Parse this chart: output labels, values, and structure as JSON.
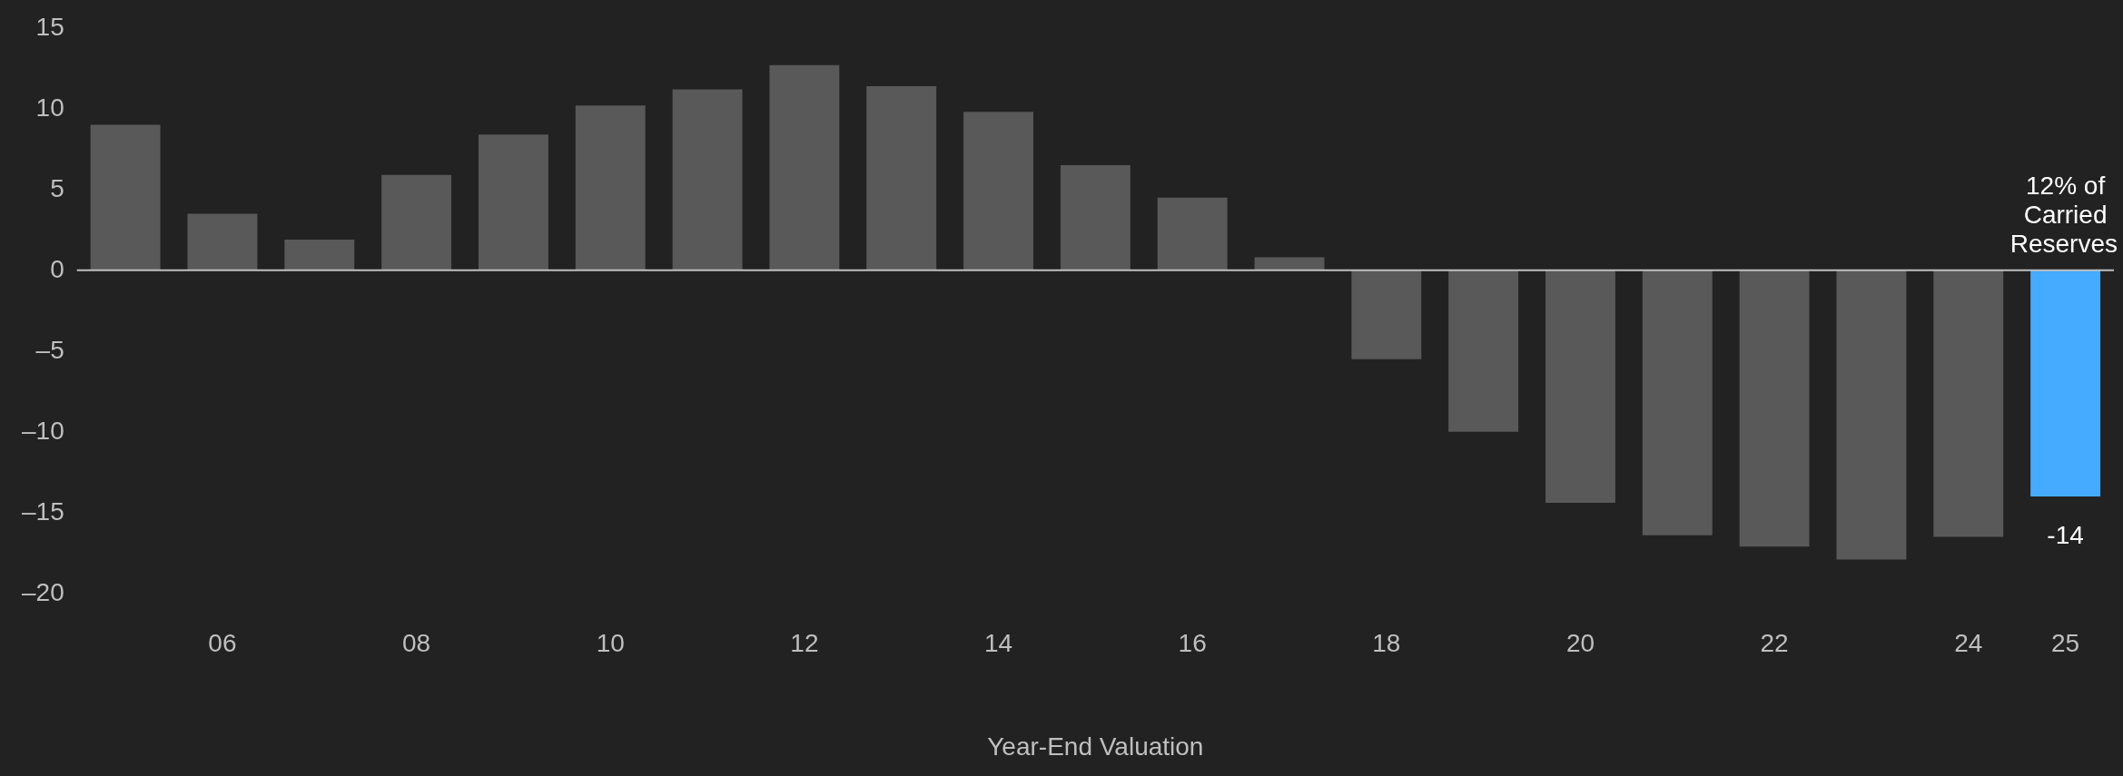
{
  "chart_data": {
    "type": "bar",
    "xlabel": "Year-End Valuation",
    "categories": [
      null,
      "06",
      null,
      "08",
      null,
      "10",
      null,
      "12",
      null,
      "14",
      null,
      "16",
      null,
      "18",
      null,
      "20",
      null,
      "22",
      null,
      "24",
      "25"
    ],
    "values": [
      9.0,
      3.5,
      1.9,
      5.9,
      8.4,
      10.2,
      11.2,
      12.7,
      11.4,
      9.8,
      6.5,
      4.5,
      0.8,
      -5.5,
      -10.0,
      -14.4,
      -16.4,
      -17.1,
      -17.9,
      -16.5,
      -14
    ],
    "colors": [
      "#595959",
      "#595959",
      "#595959",
      "#595959",
      "#595959",
      "#595959",
      "#595959",
      "#595959",
      "#595959",
      "#595959",
      "#595959",
      "#595959",
      "#595959",
      "#595959",
      "#595959",
      "#595959",
      "#595959",
      "#595959",
      "#595959",
      "#595959",
      "#45abff"
    ],
    "value_labels": [
      null,
      null,
      null,
      null,
      null,
      null,
      null,
      null,
      null,
      null,
      null,
      null,
      null,
      null,
      null,
      null,
      null,
      null,
      null,
      null,
      "-14"
    ],
    "ylim": [
      -20,
      15
    ],
    "yticks": [
      15,
      10,
      5,
      0,
      {
        "value": -5,
        "label": "–5"
      },
      {
        "value": -10,
        "label": "–10"
      },
      {
        "value": -15,
        "label": "–15"
      },
      {
        "value": -20,
        "label": "–20"
      }
    ],
    "ref_lines": [
      {
        "axis": "y",
        "value": 0,
        "color": "#bfbfbf"
      }
    ],
    "annotations": [
      {
        "text": "12% of Carried Reserves",
        "x": "25",
        "y": 0
      }
    ],
    "grid": false,
    "legend": false
  }
}
